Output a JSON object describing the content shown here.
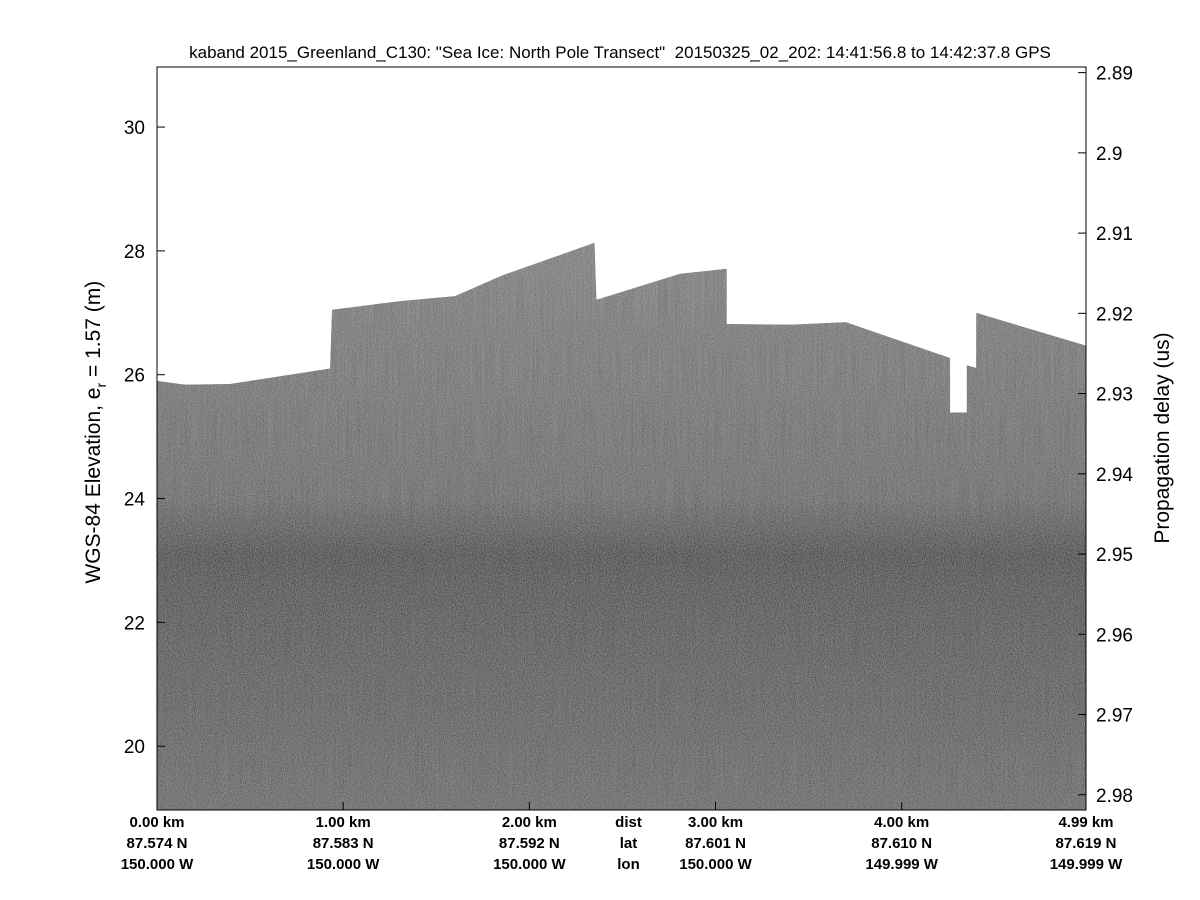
{
  "chart_data": {
    "type": "echogram",
    "title": "kaband 2015_Greenland_C130: \"Sea Ice: North Pole Transect\"  20150325_02_202: 14:41:56.8 to 14:42:37.8 GPS",
    "ylabel_parts": [
      "WGS-84 Elevation, e",
      "r",
      " = 1.57 (m)"
    ],
    "y2label": "Propagation delay (us)",
    "ylim": [
      18.97,
      30.97
    ],
    "yticks": [
      20,
      22,
      24,
      26,
      28,
      30
    ],
    "y2lim": [
      2.8893,
      2.9819
    ],
    "y2_reversed": true,
    "y2ticks": [
      2.89,
      2.9,
      2.91,
      2.92,
      2.93,
      2.94,
      2.95,
      2.96,
      2.97,
      2.98
    ],
    "xlim": [
      0,
      4.99
    ],
    "xticks": [
      {
        "value": 0,
        "label": "0.00 km"
      },
      {
        "value": 1,
        "label": "1.00 km"
      },
      {
        "value": 2,
        "label": "2.00 km"
      },
      {
        "value": 3,
        "label": "3.00 km"
      },
      {
        "value": 4,
        "label": "4.00 km"
      },
      {
        "value": 4.99,
        "label": "4.99 km"
      }
    ],
    "lat_labels": [
      "87.574 N",
      "87.583 N",
      "87.592 N",
      "87.601 N",
      "87.610 N",
      "87.619 N"
    ],
    "lon_labels": [
      "150.000 W",
      "150.000 W",
      "150.000 W",
      "150.000 W",
      "149.999 W",
      "149.999 W"
    ],
    "row_names": [
      "dist",
      "lat",
      "lon"
    ],
    "surface": {
      "x": [
        0,
        0.15,
        0.39,
        0.93,
        0.94,
        1.31,
        1.6,
        1.85,
        2.35,
        2.36,
        2.81,
        3.06,
        3.06,
        3.41,
        3.7,
        4.26,
        4.26,
        4.35,
        4.35,
        4.4,
        4.4,
        4.99
      ],
      "y": [
        25.9,
        25.84,
        25.85,
        26.1,
        27.05,
        27.19,
        27.27,
        27.6,
        28.13,
        27.21,
        27.63,
        27.71,
        26.82,
        26.81,
        26.85,
        26.27,
        25.39,
        25.39,
        26.15,
        26.11,
        27.0,
        26.47
      ]
    },
    "color": "#777777"
  }
}
